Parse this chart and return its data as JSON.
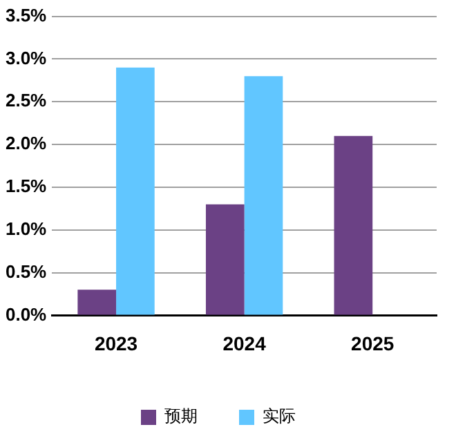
{
  "chart_data": {
    "type": "bar",
    "categories": [
      "2023",
      "2024",
      "2025"
    ],
    "series": [
      {
        "name": "预期",
        "color": "#6b4185",
        "values": [
          0.3,
          1.3,
          2.1
        ]
      },
      {
        "name": "实际",
        "color": "#61c6ff",
        "values": [
          2.9,
          2.8,
          null
        ]
      }
    ],
    "ylim": [
      0,
      3.5
    ],
    "yticks": [
      {
        "value": 0,
        "label": "0.0%"
      },
      {
        "value": 0.5,
        "label": "0.5%"
      },
      {
        "value": 1,
        "label": "1.0%"
      },
      {
        "value": 1.5,
        "label": "1.5%"
      },
      {
        "value": 2,
        "label": "2.0%"
      },
      {
        "value": 2.5,
        "label": "2.5%"
      },
      {
        "value": 3,
        "label": "3.0%"
      },
      {
        "value": 3.5,
        "label": "3.5%"
      }
    ],
    "grid": "y",
    "legend": "bottom"
  }
}
